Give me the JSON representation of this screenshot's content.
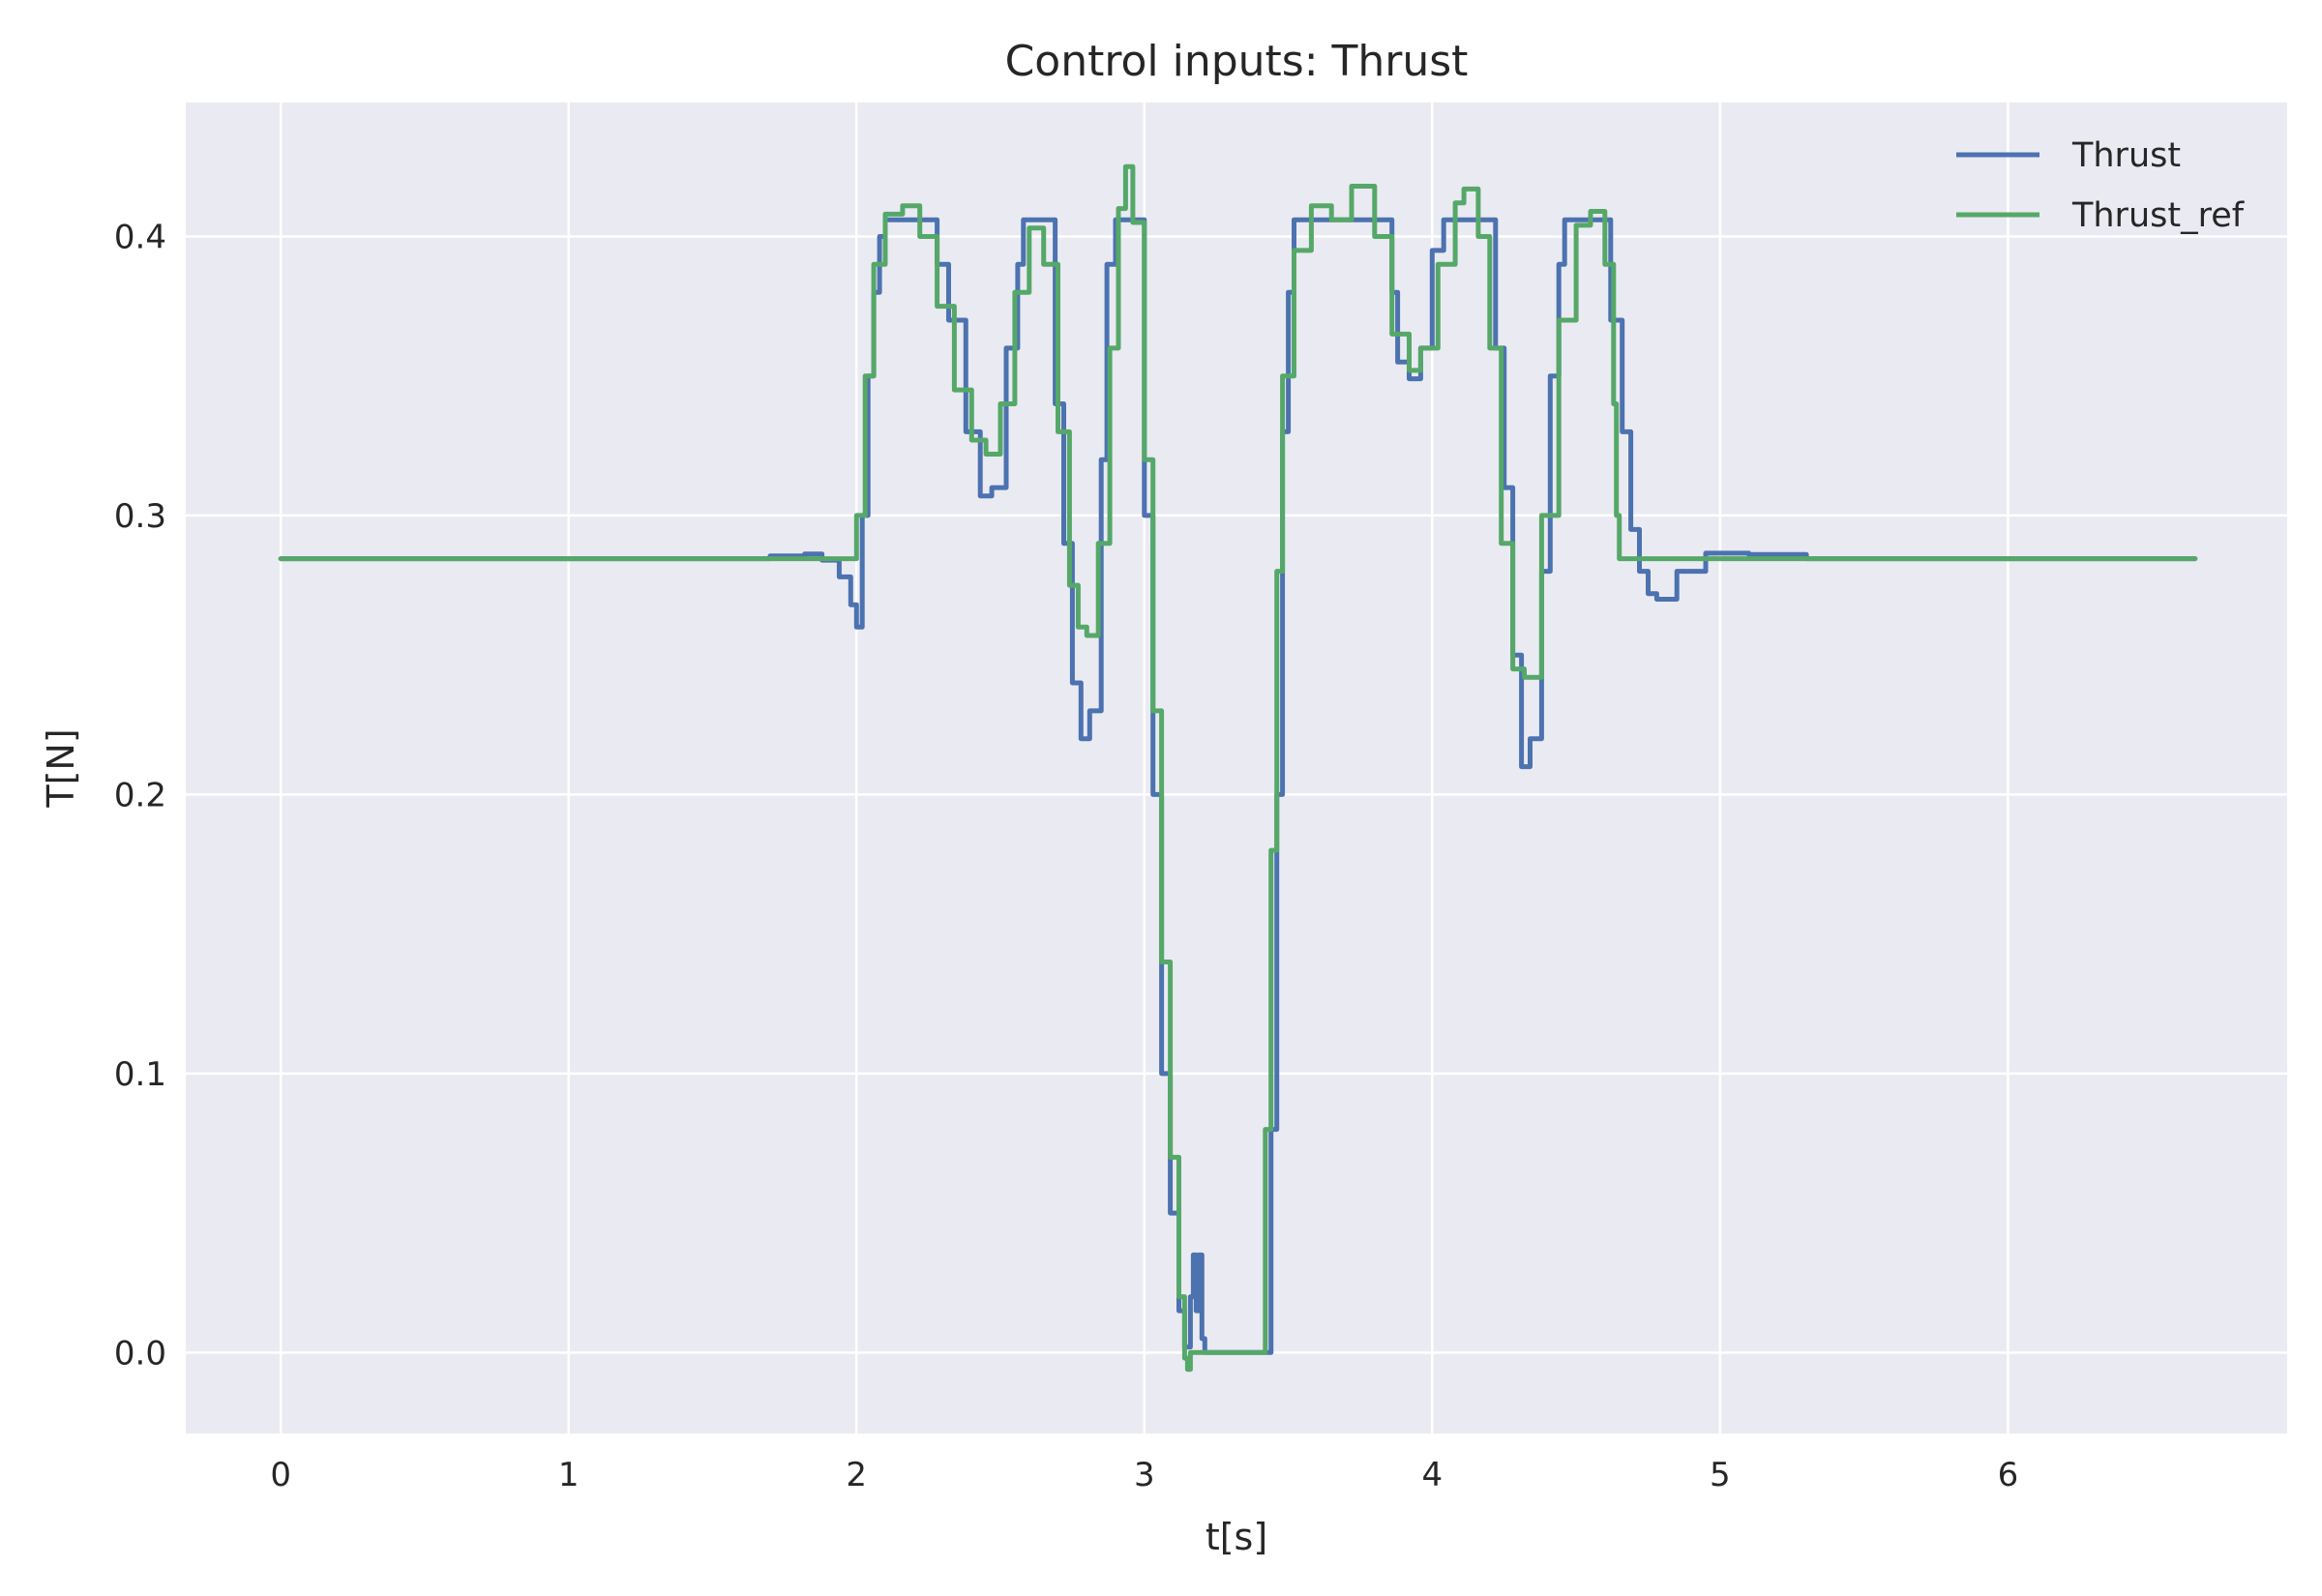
{
  "chart_data": {
    "type": "line",
    "title": "Control inputs: Thrust",
    "xlabel": "t[s]",
    "ylabel": "T[N]",
    "xlim": [
      -0.33,
      6.97
    ],
    "ylim": [
      -0.029,
      0.448
    ],
    "xticks": [
      0,
      1,
      2,
      3,
      4,
      5,
      6
    ],
    "xtick_labels": [
      "0",
      "1",
      "2",
      "3",
      "4",
      "5",
      "6"
    ],
    "yticks": [
      0.0,
      0.1,
      0.2,
      0.3,
      0.4
    ],
    "ytick_labels": [
      "0.0",
      "0.1",
      "0.2",
      "0.3",
      "0.4"
    ],
    "grid": true,
    "legend_position": "top-right",
    "background": "#EAEAF2",
    "series": [
      {
        "name": "Thrust",
        "color": "#4C72B0",
        "x": [
          0,
          1.5,
          1.7,
          1.82,
          1.88,
          1.94,
          1.98,
          2.0,
          2.02,
          2.04,
          2.06,
          2.08,
          2.1,
          2.15,
          2.2,
          2.25,
          2.28,
          2.32,
          2.38,
          2.43,
          2.47,
          2.52,
          2.56,
          2.58,
          2.62,
          2.66,
          2.69,
          2.72,
          2.75,
          2.78,
          2.81,
          2.85,
          2.87,
          2.9,
          2.92,
          2.98,
          3.0,
          3.03,
          3.06,
          3.09,
          3.12,
          3.14,
          3.16,
          3.17,
          3.18,
          3.19,
          3.2,
          3.21,
          3.42,
          3.44,
          3.46,
          3.48,
          3.5,
          3.52,
          3.55,
          3.7,
          3.84,
          3.86,
          3.88,
          3.92,
          3.96,
          4.0,
          4.04,
          4.12,
          4.2,
          4.22,
          4.25,
          4.28,
          4.31,
          4.34,
          4.38,
          4.41,
          4.44,
          4.46,
          4.48,
          4.6,
          4.62,
          4.66,
          4.69,
          4.72,
          4.75,
          4.78,
          4.85,
          4.95,
          5.1,
          5.3,
          6.65
        ],
        "y": [
          0.2845,
          0.2845,
          0.2855,
          0.2862,
          0.284,
          0.278,
          0.268,
          0.26,
          0.3,
          0.35,
          0.38,
          0.4,
          0.406,
          0.406,
          0.406,
          0.406,
          0.39,
          0.37,
          0.33,
          0.307,
          0.31,
          0.36,
          0.39,
          0.406,
          0.406,
          0.406,
          0.34,
          0.29,
          0.24,
          0.22,
          0.23,
          0.32,
          0.39,
          0.406,
          0.406,
          0.406,
          0.3,
          0.2,
          0.1,
          0.05,
          0.015,
          0.002,
          0.02,
          0.035,
          0.015,
          0.035,
          0.005,
          0.0,
          0.0,
          0.08,
          0.2,
          0.33,
          0.38,
          0.406,
          0.406,
          0.406,
          0.406,
          0.38,
          0.355,
          0.349,
          0.36,
          0.395,
          0.406,
          0.406,
          0.406,
          0.36,
          0.31,
          0.25,
          0.21,
          0.22,
          0.28,
          0.35,
          0.39,
          0.406,
          0.406,
          0.406,
          0.37,
          0.33,
          0.295,
          0.28,
          0.272,
          0.27,
          0.28,
          0.2865,
          0.286,
          0.2845,
          0.2845
        ]
      },
      {
        "name": "Thrust_ref",
        "color": "#55A868",
        "x": [
          0,
          1.99,
          2.0,
          2.03,
          2.06,
          2.1,
          2.16,
          2.22,
          2.28,
          2.34,
          2.4,
          2.45,
          2.5,
          2.55,
          2.6,
          2.65,
          2.7,
          2.74,
          2.77,
          2.8,
          2.84,
          2.88,
          2.91,
          2.935,
          2.96,
          3.0,
          3.03,
          3.06,
          3.09,
          3.12,
          3.14,
          3.15,
          3.16,
          3.41,
          3.42,
          3.44,
          3.46,
          3.48,
          3.52,
          3.58,
          3.65,
          3.72,
          3.8,
          3.86,
          3.92,
          3.96,
          4.02,
          4.08,
          4.11,
          4.16,
          4.2,
          4.24,
          4.28,
          4.32,
          4.38,
          4.44,
          4.5,
          4.55,
          4.6,
          4.63,
          4.64,
          4.65,
          6.65
        ],
        "y": [
          0.2845,
          0.2845,
          0.3,
          0.35,
          0.39,
          0.408,
          0.411,
          0.4,
          0.375,
          0.345,
          0.327,
          0.322,
          0.34,
          0.38,
          0.403,
          0.39,
          0.33,
          0.275,
          0.26,
          0.257,
          0.29,
          0.36,
          0.41,
          0.425,
          0.405,
          0.32,
          0.23,
          0.14,
          0.07,
          0.02,
          -0.002,
          -0.006,
          0.0,
          0.0,
          0.08,
          0.18,
          0.28,
          0.35,
          0.395,
          0.411,
          0.406,
          0.418,
          0.4,
          0.365,
          0.352,
          0.36,
          0.39,
          0.412,
          0.417,
          0.4,
          0.36,
          0.29,
          0.245,
          0.242,
          0.3,
          0.37,
          0.404,
          0.409,
          0.39,
          0.34,
          0.3,
          0.2845,
          0.2845
        ]
      }
    ]
  }
}
